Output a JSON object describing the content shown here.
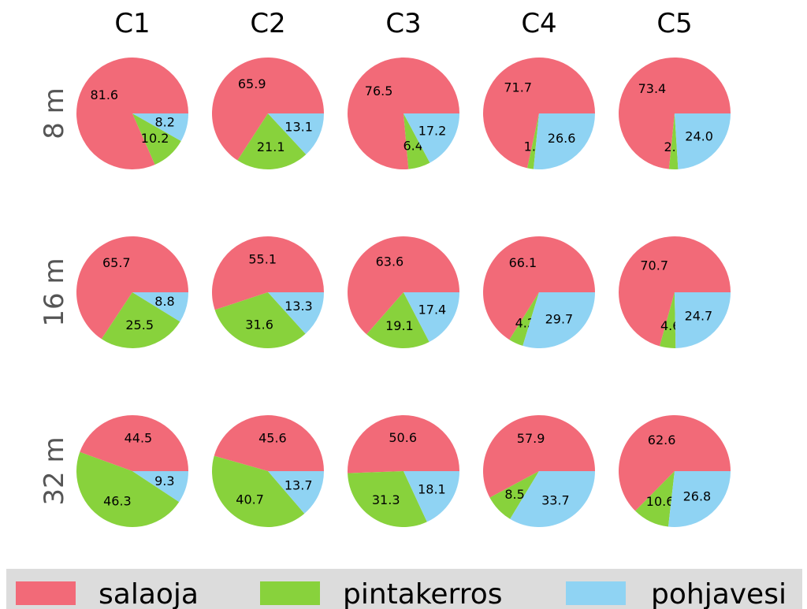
{
  "chart_data": {
    "type": "pie",
    "columns": [
      "C1",
      "C2",
      "C3",
      "C4",
      "C5"
    ],
    "rows": [
      "8 m",
      "16 m",
      "32 m"
    ],
    "series": [
      {
        "name": "salaoja",
        "color": "#f26a78"
      },
      {
        "name": "pintakerros",
        "color": "#88d23c"
      },
      {
        "name": "pohjavesi",
        "color": "#8fd3f3"
      }
    ],
    "values": [
      [
        [
          81.6,
          10.2,
          8.2
        ],
        [
          65.9,
          21.1,
          13.1
        ],
        [
          76.5,
          6.4,
          17.2
        ],
        [
          71.7,
          1.8,
          26.6
        ],
        [
          73.4,
          2.6,
          24.0
        ]
      ],
      [
        [
          65.7,
          25.5,
          8.8
        ],
        [
          55.1,
          31.6,
          13.3
        ],
        [
          63.6,
          19.1,
          17.4
        ],
        [
          66.1,
          4.2,
          29.7
        ],
        [
          70.7,
          4.6,
          24.7
        ]
      ],
      [
        [
          44.5,
          46.3,
          9.3
        ],
        [
          45.6,
          40.7,
          13.7
        ],
        [
          50.6,
          31.3,
          18.1
        ],
        [
          57.9,
          8.5,
          33.7
        ],
        [
          62.6,
          10.6,
          26.8
        ]
      ]
    ],
    "labels": [
      [
        [
          "81.6",
          "10.2",
          "8.2"
        ],
        [
          "65.9",
          "21.1",
          "13.1"
        ],
        [
          "76.5",
          "6.4",
          "17.2"
        ],
        [
          "71.7",
          "1.8",
          "26.6"
        ],
        [
          "73.4",
          "2.6",
          "24.0"
        ]
      ],
      [
        [
          "65.7",
          "25.5",
          "8.8"
        ],
        [
          "55.1",
          "31.6",
          "13.3"
        ],
        [
          "63.6",
          "19.1",
          "17.4"
        ],
        [
          "66.1",
          "4.2",
          "29.7"
        ],
        [
          "70.7",
          "4.6",
          "24.7"
        ]
      ],
      [
        [
          "44.5",
          "46.3",
          "9.3"
        ],
        [
          "45.6",
          "40.7",
          "13.7"
        ],
        [
          "50.6",
          "31.3",
          "18.1"
        ],
        [
          "57.9",
          "8.5",
          "33.7"
        ],
        [
          "62.6",
          "10.6",
          "26.8"
        ]
      ]
    ],
    "start_angle_deg": 0,
    "direction": "counterclockwise",
    "legend_placement": "bottom"
  }
}
